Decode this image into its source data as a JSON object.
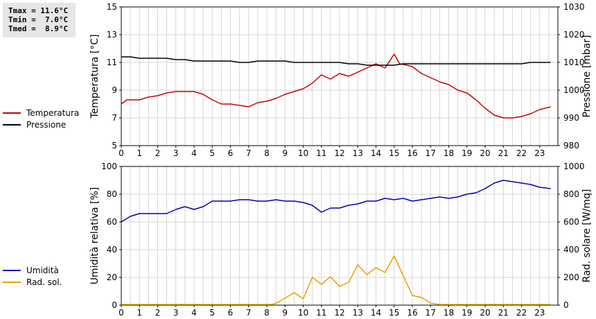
{
  "stats": {
    "tmax": "Tmax = 11.6°C",
    "tmin": "Tmin =  7.0°C",
    "tmed": "Tmed =  8.9°C"
  },
  "legend_top": [
    {
      "label": "Temperatura",
      "color": "#cc0000"
    },
    {
      "label": "Pressione",
      "color": "#000000"
    }
  ],
  "legend_bottom": [
    {
      "label": "Umidità",
      "color": "#0000b4"
    },
    {
      "label": "Rad. sol.",
      "color": "#e8a000"
    }
  ],
  "chart_data": [
    {
      "type": "line",
      "ylabel_left": "Temperatura [°C]",
      "ylabel_right": "Pressione [mbar]",
      "xlim": [
        0,
        24
      ],
      "xticks": [
        0,
        1,
        2,
        3,
        4,
        5,
        6,
        7,
        8,
        9,
        10,
        11,
        12,
        13,
        14,
        15,
        16,
        17,
        18,
        19,
        20,
        21,
        22,
        23
      ],
      "ylim_left": [
        5,
        15
      ],
      "yticks_left": [
        5,
        7,
        9,
        11,
        13,
        15
      ],
      "ylim_right": [
        980,
        1030
      ],
      "yticks_right": [
        980,
        990,
        1000,
        1010,
        1020,
        1030
      ],
      "grid": true,
      "series": [
        {
          "name": "Temperatura",
          "axis": "left",
          "color": "#cc0000",
          "points": [
            [
              0,
              8.0
            ],
            [
              0.3,
              8.3
            ],
            [
              0.7,
              8.3
            ],
            [
              1,
              8.3
            ],
            [
              1.5,
              8.5
            ],
            [
              2,
              8.6
            ],
            [
              2.5,
              8.8
            ],
            [
              3,
              8.9
            ],
            [
              3.5,
              8.9
            ],
            [
              4,
              8.9
            ],
            [
              4.5,
              8.7
            ],
            [
              5,
              8.3
            ],
            [
              5.5,
              8.0
            ],
            [
              6,
              8.0
            ],
            [
              6.5,
              7.9
            ],
            [
              7,
              7.8
            ],
            [
              7.5,
              8.1
            ],
            [
              8,
              8.2
            ],
            [
              8.5,
              8.4
            ],
            [
              9,
              8.7
            ],
            [
              9.5,
              8.9
            ],
            [
              10,
              9.1
            ],
            [
              10.5,
              9.5
            ],
            [
              11,
              10.1
            ],
            [
              11.5,
              9.8
            ],
            [
              12,
              10.2
            ],
            [
              12.5,
              10.0
            ],
            [
              13,
              10.3
            ],
            [
              13.5,
              10.6
            ],
            [
              14,
              10.9
            ],
            [
              14.5,
              10.6
            ],
            [
              15,
              11.6
            ],
            [
              15.3,
              10.9
            ],
            [
              15.7,
              10.8
            ],
            [
              16,
              10.7
            ],
            [
              16.5,
              10.2
            ],
            [
              17,
              9.9
            ],
            [
              17.5,
              9.6
            ],
            [
              18,
              9.4
            ],
            [
              18.5,
              9.0
            ],
            [
              19,
              8.8
            ],
            [
              19.5,
              8.3
            ],
            [
              20,
              7.7
            ],
            [
              20.5,
              7.2
            ],
            [
              21,
              7.0
            ],
            [
              21.5,
              7.0
            ],
            [
              22,
              7.1
            ],
            [
              22.5,
              7.3
            ],
            [
              23,
              7.6
            ],
            [
              23.6,
              7.8
            ]
          ]
        },
        {
          "name": "Pressione",
          "axis": "right",
          "color": "#000000",
          "points": [
            [
              0,
              1012
            ],
            [
              0.5,
              1012
            ],
            [
              1,
              1011.5
            ],
            [
              1.5,
              1011.5
            ],
            [
              2,
              1011.5
            ],
            [
              2.5,
              1011.5
            ],
            [
              3,
              1011
            ],
            [
              3.5,
              1011
            ],
            [
              4,
              1010.5
            ],
            [
              5,
              1010.5
            ],
            [
              6,
              1010.5
            ],
            [
              6.5,
              1010
            ],
            [
              7,
              1010
            ],
            [
              7.5,
              1010.5
            ],
            [
              8,
              1010.5
            ],
            [
              8.5,
              1010.5
            ],
            [
              9,
              1010.5
            ],
            [
              9.5,
              1010
            ],
            [
              10,
              1010
            ],
            [
              11,
              1010
            ],
            [
              12,
              1010
            ],
            [
              12.5,
              1009.5
            ],
            [
              13,
              1009.5
            ],
            [
              13.5,
              1009
            ],
            [
              14,
              1009
            ],
            [
              14.5,
              1009
            ],
            [
              15,
              1009
            ],
            [
              15.5,
              1009.5
            ],
            [
              16,
              1009.5
            ],
            [
              17,
              1009.5
            ],
            [
              18,
              1009.5
            ],
            [
              19,
              1009.5
            ],
            [
              20,
              1009.5
            ],
            [
              21,
              1009.5
            ],
            [
              22,
              1009.5
            ],
            [
              22.5,
              1010
            ],
            [
              23,
              1010
            ],
            [
              23.6,
              1010
            ]
          ]
        }
      ]
    },
    {
      "type": "line",
      "ylabel_left": "Umidità relativa [%]",
      "ylabel_right": "Rad. solare [W/mq]",
      "xlim": [
        0,
        24
      ],
      "xticks": [
        0,
        1,
        2,
        3,
        4,
        5,
        6,
        7,
        8,
        9,
        10,
        11,
        12,
        13,
        14,
        15,
        16,
        17,
        18,
        19,
        20,
        21,
        22,
        23
      ],
      "ylim_left": [
        0,
        100
      ],
      "yticks_left": [
        0,
        20,
        40,
        60,
        80,
        100
      ],
      "ylim_right": [
        0,
        1000
      ],
      "yticks_right": [
        0,
        200,
        400,
        600,
        800,
        1000
      ],
      "grid": true,
      "series": [
        {
          "name": "Umidità",
          "axis": "left",
          "color": "#0000b4",
          "points": [
            [
              0,
              60
            ],
            [
              0.5,
              64
            ],
            [
              1,
              66
            ],
            [
              1.5,
              66
            ],
            [
              2,
              66
            ],
            [
              2.5,
              66
            ],
            [
              3,
              69
            ],
            [
              3.5,
              71
            ],
            [
              4,
              69
            ],
            [
              4.5,
              71
            ],
            [
              5,
              75
            ],
            [
              5.5,
              75
            ],
            [
              6,
              75
            ],
            [
              6.5,
              76
            ],
            [
              7,
              76
            ],
            [
              7.5,
              75
            ],
            [
              8,
              75
            ],
            [
              8.5,
              76
            ],
            [
              9,
              75
            ],
            [
              9.5,
              75
            ],
            [
              10,
              74
            ],
            [
              10.5,
              72
            ],
            [
              11,
              67
            ],
            [
              11.5,
              70
            ],
            [
              12,
              70
            ],
            [
              12.5,
              72
            ],
            [
              13,
              73
            ],
            [
              13.5,
              75
            ],
            [
              14,
              75
            ],
            [
              14.5,
              77
            ],
            [
              15,
              76
            ],
            [
              15.5,
              77
            ],
            [
              16,
              75
            ],
            [
              16.5,
              76
            ],
            [
              17,
              77
            ],
            [
              17.5,
              78
            ],
            [
              18,
              77
            ],
            [
              18.5,
              78
            ],
            [
              19,
              80
            ],
            [
              19.5,
              81
            ],
            [
              20,
              84
            ],
            [
              20.5,
              88
            ],
            [
              21,
              90
            ],
            [
              21.5,
              89
            ],
            [
              22,
              88
            ],
            [
              22.5,
              87
            ],
            [
              23,
              85
            ],
            [
              23.6,
              84
            ]
          ]
        },
        {
          "name": "Rad. sol.",
          "axis": "right",
          "color": "#e8a000",
          "points": [
            [
              0,
              5
            ],
            [
              1,
              5
            ],
            [
              2,
              5
            ],
            [
              3,
              5
            ],
            [
              4,
              5
            ],
            [
              5,
              5
            ],
            [
              6,
              5
            ],
            [
              7,
              5
            ],
            [
              8,
              5
            ],
            [
              8.3,
              5
            ],
            [
              8.6,
              20
            ],
            [
              9,
              50
            ],
            [
              9.5,
              90
            ],
            [
              10,
              45
            ],
            [
              10.5,
              200
            ],
            [
              11,
              150
            ],
            [
              11.5,
              205
            ],
            [
              12,
              135
            ],
            [
              12.5,
              165
            ],
            [
              13,
              290
            ],
            [
              13.5,
              220
            ],
            [
              14,
              270
            ],
            [
              14.5,
              235
            ],
            [
              15,
              355
            ],
            [
              15.5,
              210
            ],
            [
              16,
              70
            ],
            [
              16.5,
              55
            ],
            [
              17,
              15
            ],
            [
              17.5,
              5
            ],
            [
              18,
              5
            ],
            [
              19,
              5
            ],
            [
              20,
              5
            ],
            [
              21,
              5
            ],
            [
              22,
              5
            ],
            [
              23,
              5
            ],
            [
              23.6,
              5
            ]
          ]
        }
      ]
    }
  ]
}
